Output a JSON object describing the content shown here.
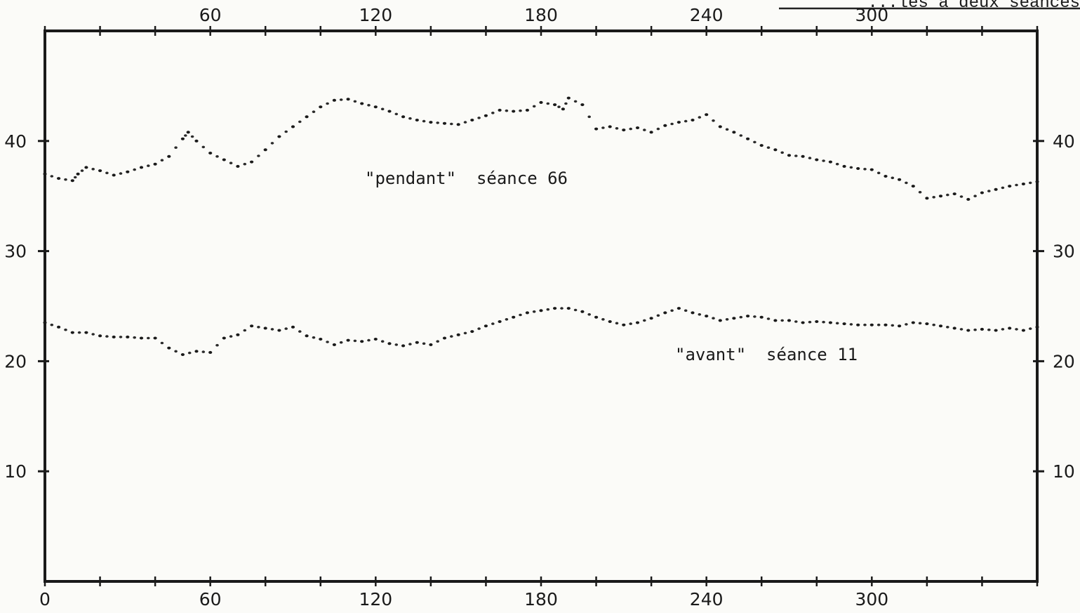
{
  "header_fragment": "...les à deux séances",
  "chart_data": {
    "type": "scatter",
    "title": "",
    "xlabel": "",
    "ylabel": "",
    "xlim": [
      0,
      360
    ],
    "ylim": [
      0,
      50
    ],
    "x_ticks_bottom": [
      0,
      60,
      120,
      180,
      240,
      300
    ],
    "x_ticks_top": [
      60,
      120,
      180,
      240,
      300
    ],
    "y_ticks_left": [
      10,
      20,
      30,
      40
    ],
    "y_ticks_right": [
      10,
      20,
      30,
      40
    ],
    "annotations": [
      {
        "text": "\"pendant\"  séance 66",
        "series": "pendant"
      },
      {
        "text": "\"avant\"  séance 11",
        "series": "avant"
      }
    ],
    "series": [
      {
        "key": "pendant",
        "x": [
          0,
          5,
          10,
          12,
          15,
          20,
          25,
          30,
          35,
          40,
          45,
          50,
          52,
          55,
          60,
          65,
          70,
          75,
          80,
          85,
          90,
          95,
          100,
          105,
          110,
          115,
          120,
          125,
          130,
          135,
          140,
          145,
          150,
          155,
          160,
          165,
          170,
          175,
          180,
          185,
          188,
          190,
          195,
          200,
          205,
          210,
          215,
          220,
          225,
          230,
          235,
          240,
          245,
          250,
          255,
          260,
          265,
          270,
          275,
          280,
          285,
          290,
          295,
          300,
          305,
          310,
          315,
          320,
          325,
          330,
          335,
          340,
          345,
          350,
          355,
          360
        ],
        "y": [
          37.0,
          36.6,
          36.4,
          37.0,
          37.6,
          37.3,
          36.9,
          37.2,
          37.6,
          37.9,
          38.6,
          40.2,
          40.8,
          40.0,
          38.9,
          38.3,
          37.7,
          38.1,
          39.2,
          40.4,
          41.3,
          42.2,
          43.1,
          43.7,
          43.8,
          43.4,
          43.1,
          42.7,
          42.2,
          41.9,
          41.7,
          41.6,
          41.5,
          41.9,
          42.3,
          42.8,
          42.7,
          42.8,
          43.5,
          43.3,
          42.9,
          43.9,
          43.3,
          41.1,
          41.3,
          41.0,
          41.2,
          40.8,
          41.4,
          41.7,
          41.9,
          42.4,
          41.3,
          40.8,
          40.2,
          39.6,
          39.2,
          38.7,
          38.6,
          38.3,
          38.1,
          37.7,
          37.5,
          37.4,
          36.8,
          36.5,
          35.9,
          34.8,
          35.0,
          35.2,
          34.7,
          35.3,
          35.6,
          35.9,
          36.1,
          36.3
        ]
      },
      {
        "key": "avant",
        "x": [
          0,
          5,
          10,
          15,
          20,
          25,
          30,
          35,
          40,
          45,
          50,
          55,
          60,
          65,
          70,
          75,
          80,
          85,
          90,
          95,
          100,
          105,
          110,
          115,
          120,
          125,
          130,
          135,
          140,
          145,
          150,
          155,
          160,
          165,
          170,
          175,
          180,
          185,
          190,
          195,
          200,
          205,
          210,
          215,
          220,
          225,
          230,
          235,
          240,
          245,
          250,
          255,
          260,
          265,
          270,
          275,
          280,
          285,
          290,
          295,
          300,
          305,
          310,
          315,
          320,
          325,
          330,
          335,
          340,
          345,
          350,
          355,
          360
        ],
        "y": [
          23.5,
          23.1,
          22.6,
          22.6,
          22.3,
          22.2,
          22.2,
          22.1,
          22.1,
          21.2,
          20.6,
          20.9,
          20.8,
          22.1,
          22.4,
          23.2,
          23.0,
          22.8,
          23.1,
          22.3,
          22.0,
          21.5,
          21.9,
          21.8,
          22.0,
          21.6,
          21.4,
          21.7,
          21.5,
          22.1,
          22.4,
          22.7,
          23.2,
          23.6,
          24.0,
          24.4,
          24.6,
          24.8,
          24.8,
          24.5,
          24.0,
          23.6,
          23.3,
          23.5,
          23.9,
          24.4,
          24.8,
          24.4,
          24.1,
          23.7,
          23.9,
          24.1,
          24.0,
          23.7,
          23.7,
          23.5,
          23.6,
          23.5,
          23.4,
          23.3,
          23.3,
          23.3,
          23.2,
          23.5,
          23.4,
          23.2,
          23.0,
          22.8,
          22.9,
          22.8,
          23.0,
          22.8,
          23.1
        ]
      }
    ]
  }
}
